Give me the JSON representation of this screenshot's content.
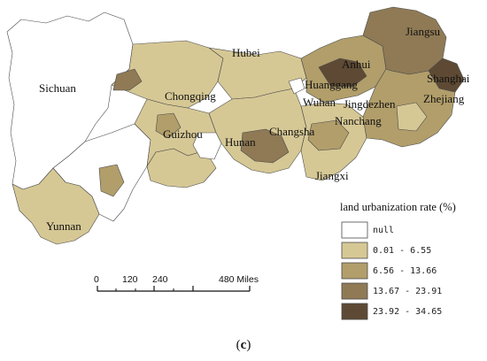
{
  "map": {
    "regions": [
      {
        "name": "Sichuan"
      },
      {
        "name": "Chongqing"
      },
      {
        "name": "Hubei"
      },
      {
        "name": "Anhui"
      },
      {
        "name": "Jiangsu"
      },
      {
        "name": "Shanghai"
      },
      {
        "name": "Zhejiang"
      },
      {
        "name": "Huanggang"
      },
      {
        "name": "Wuhan"
      },
      {
        "name": "Jingdezhen"
      },
      {
        "name": "Nanchang"
      },
      {
        "name": "Changsha"
      },
      {
        "name": "Hunan"
      },
      {
        "name": "Guizhou"
      },
      {
        "name": "Jiangxi"
      },
      {
        "name": "Yunnan"
      }
    ]
  },
  "legend": {
    "title": "land urbanization rate (%)",
    "classes": [
      {
        "label": "null",
        "color": "#ffffff"
      },
      {
        "label": "0.01 - 6.55",
        "color": "#d6c895"
      },
      {
        "label": "6.56 - 13.66",
        "color": "#b19e6a"
      },
      {
        "label": "13.67 - 23.91",
        "color": "#8f7a55"
      },
      {
        "label": "23.92 - 34.65",
        "color": "#5e4a34"
      }
    ]
  },
  "scale_bar": {
    "ticks": [
      "0",
      "120",
      "240",
      "480 Miles"
    ]
  },
  "caption": {
    "open": "(",
    "letter": "c",
    "close": ")"
  }
}
